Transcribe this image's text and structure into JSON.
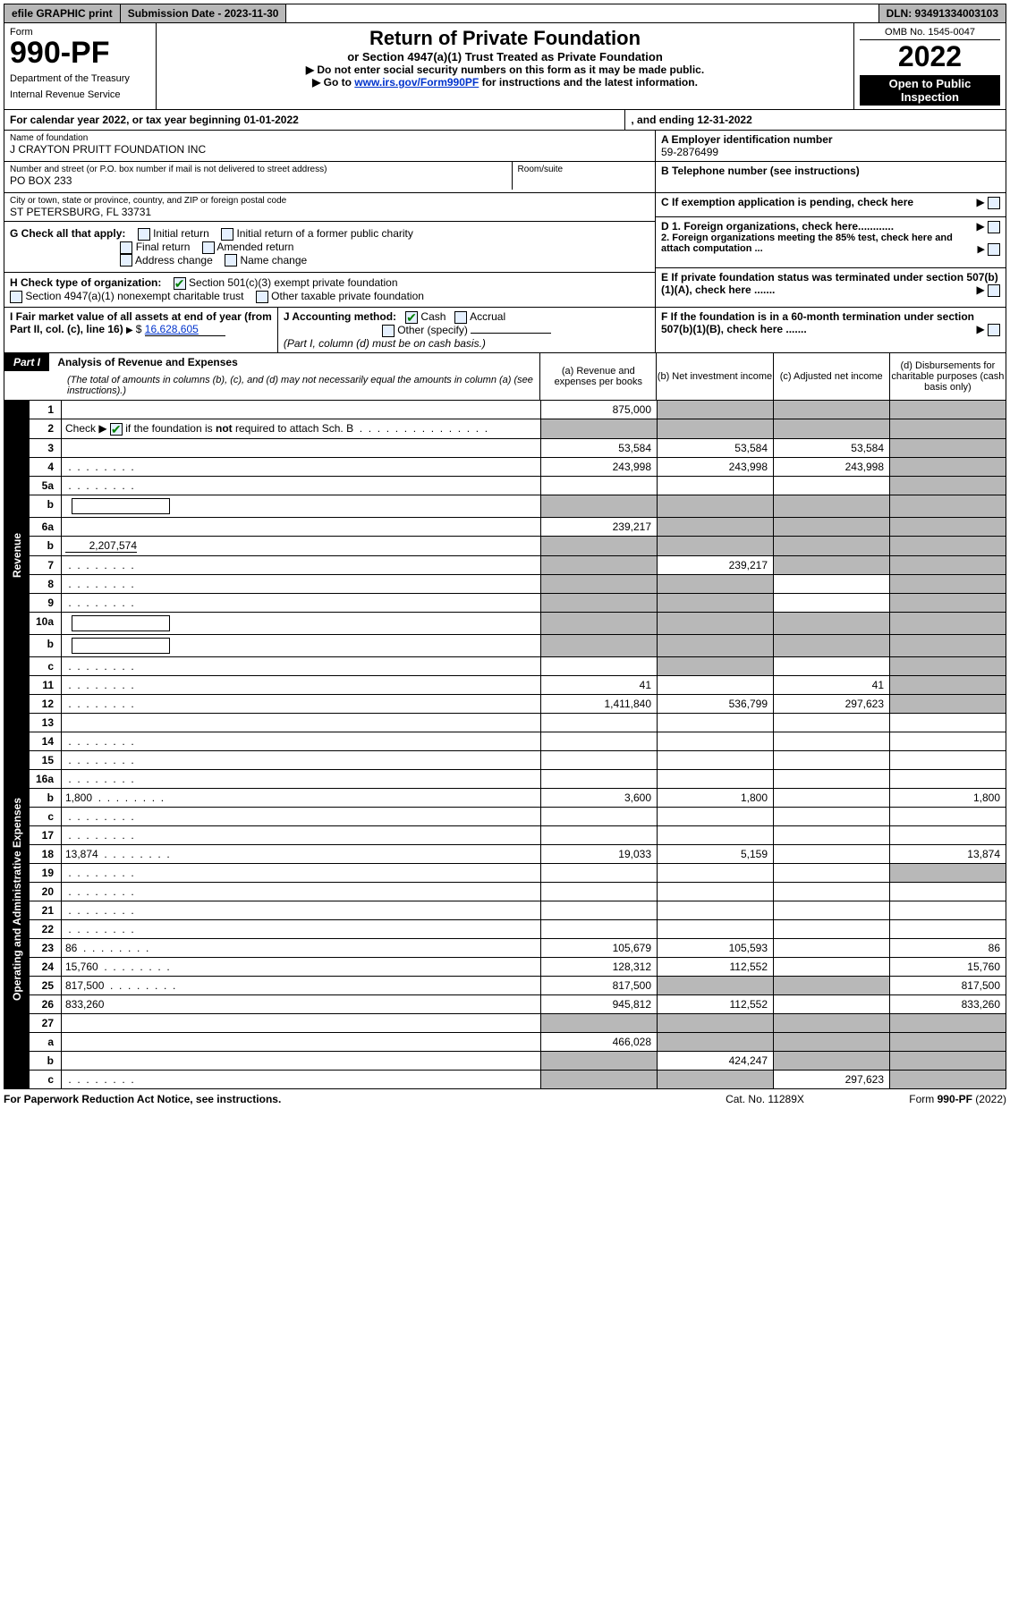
{
  "topbar": {
    "efile": "efile GRAPHIC print",
    "subdate_label": "Submission Date - 2023-11-30",
    "dln": "DLN: 93491334003103"
  },
  "header": {
    "form_label": "Form",
    "form_no": "990-PF",
    "dept": "Department of the Treasury",
    "irs": "Internal Revenue Service",
    "title": "Return of Private Foundation",
    "subtitle": "or Section 4947(a)(1) Trust Treated as Private Foundation",
    "note1": "▶ Do not enter social security numbers on this form as it may be made public.",
    "note2_prefix": "▶ Go to ",
    "note2_link": "www.irs.gov/Form990PF",
    "note2_suffix": " for instructions and the latest information.",
    "omb": "OMB No. 1545-0047",
    "year": "2022",
    "open": "Open to Public Inspection"
  },
  "cal": {
    "text_a": "For calendar year 2022, or tax year beginning 01-01-2022",
    "text_b": ", and ending 12-31-2022"
  },
  "id": {
    "name_label": "Name of foundation",
    "name": "J CRAYTON PRUITT FOUNDATION INC",
    "addr_label": "Number and street (or P.O. box number if mail is not delivered to street address)",
    "addr": "PO BOX 233",
    "room_label": "Room/suite",
    "city_label": "City or town, state or province, country, and ZIP or foreign postal code",
    "city": "ST PETERSBURG, FL  33731",
    "a_label": "A Employer identification number",
    "a_val": "59-2876499",
    "b_label": "B Telephone number (see instructions)",
    "c_label": "C If exemption application is pending, check here",
    "d1_label": "D 1. Foreign organizations, check here............",
    "d2_label": "2. Foreign organizations meeting the 85% test, check here and attach computation ...",
    "e_label": "E  If private foundation status was terminated under section 507(b)(1)(A), check here .......",
    "f_label": "F  If the foundation is in a 60-month termination under section 507(b)(1)(B), check here .......",
    "g_label": "G Check all that apply:",
    "g_opts": [
      "Initial return",
      "Initial return of a former public charity",
      "Final return",
      "Amended return",
      "Address change",
      "Name change"
    ],
    "h_label": "H Check type of organization:",
    "h_opt1": "Section 501(c)(3) exempt private foundation",
    "h_opt2": "Section 4947(a)(1) nonexempt charitable trust",
    "h_opt3": "Other taxable private foundation",
    "i_label": "I Fair market value of all assets at end of year (from Part II, col. (c), line 16)",
    "i_val": "16,628,605",
    "j_label": "J Accounting method:",
    "j_cash": "Cash",
    "j_accrual": "Accrual",
    "j_other": "Other (specify)",
    "j_note": "(Part I, column (d) must be on cash basis.)"
  },
  "part1": {
    "label": "Part I",
    "title": "Analysis of Revenue and Expenses",
    "title_note": "(The total of amounts in columns (b), (c), and (d) may not necessarily equal the amounts in column (a) (see instructions).)",
    "col_a": "(a)   Revenue and expenses per books",
    "col_b": "(b)   Net investment income",
    "col_c": "(c)   Adjusted net income",
    "col_d": "(d)   Disbursements for charitable purposes (cash basis only)",
    "side_rev": "Revenue",
    "side_exp": "Operating and Administrative Expenses"
  },
  "rows": [
    {
      "n": "1",
      "d": "",
      "a": "875,000",
      "b": "",
      "c": "",
      "sb": true,
      "sc": true,
      "sd": true
    },
    {
      "n": "2",
      "d": "",
      "dots": true,
      "a": "",
      "b": "",
      "c": "",
      "sa": true,
      "sb": true,
      "sc": true,
      "sd": true,
      "check": true
    },
    {
      "n": "3",
      "d": "",
      "a": "53,584",
      "b": "53,584",
      "c": "53,584",
      "sd": true
    },
    {
      "n": "4",
      "d": "",
      "dots": true,
      "a": "243,998",
      "b": "243,998",
      "c": "243,998",
      "sd": true
    },
    {
      "n": "5a",
      "d": "",
      "dots": true,
      "a": "",
      "b": "",
      "c": "",
      "sd": true
    },
    {
      "n": "b",
      "d": "",
      "inp": true,
      "a": "",
      "b": "",
      "c": "",
      "sa": true,
      "sb": true,
      "sc": true,
      "sd": true
    },
    {
      "n": "6a",
      "d": "",
      "a": "239,217",
      "b": "",
      "c": "",
      "sb": true,
      "sc": true,
      "sd": true
    },
    {
      "n": "b",
      "d": "",
      "subval": "2,207,574",
      "a": "",
      "b": "",
      "c": "",
      "sa": true,
      "sb": true,
      "sc": true,
      "sd": true
    },
    {
      "n": "7",
      "d": "",
      "dots": true,
      "a": "",
      "b": "239,217",
      "c": "",
      "sa": true,
      "sc": true,
      "sd": true
    },
    {
      "n": "8",
      "d": "",
      "dots": true,
      "a": "",
      "b": "",
      "c": "",
      "sa": true,
      "sb": true,
      "sd": true
    },
    {
      "n": "9",
      "d": "",
      "dots": true,
      "a": "",
      "b": "",
      "c": "",
      "sa": true,
      "sb": true,
      "sd": true
    },
    {
      "n": "10a",
      "d": "",
      "inp": true,
      "a": "",
      "b": "",
      "c": "",
      "sa": true,
      "sb": true,
      "sc": true,
      "sd": true
    },
    {
      "n": "b",
      "d": "",
      "dots": true,
      "inp": true,
      "a": "",
      "b": "",
      "c": "",
      "sa": true,
      "sb": true,
      "sc": true,
      "sd": true
    },
    {
      "n": "c",
      "d": "",
      "dots": true,
      "a": "",
      "b": "",
      "c": "",
      "sb": true,
      "sd": true
    },
    {
      "n": "11",
      "d": "",
      "dots": true,
      "a": "41",
      "b": "",
      "c": "41",
      "sd": true
    },
    {
      "n": "12",
      "d": "",
      "dots": true,
      "a": "1,411,840",
      "b": "536,799",
      "c": "297,623",
      "sd": true,
      "bold": true
    }
  ],
  "exprows": [
    {
      "n": "13",
      "d": "",
      "a": "",
      "b": "",
      "c": ""
    },
    {
      "n": "14",
      "d": "",
      "dots": true,
      "a": "",
      "b": "",
      "c": ""
    },
    {
      "n": "15",
      "d": "",
      "dots": true,
      "a": "",
      "b": "",
      "c": ""
    },
    {
      "n": "16a",
      "d": "",
      "dots": true,
      "a": "",
      "b": "",
      "c": ""
    },
    {
      "n": "b",
      "d": "1,800",
      "dots": true,
      "a": "3,600",
      "b": "1,800",
      "c": ""
    },
    {
      "n": "c",
      "d": "",
      "dots": true,
      "a": "",
      "b": "",
      "c": ""
    },
    {
      "n": "17",
      "d": "",
      "dots": true,
      "a": "",
      "b": "",
      "c": ""
    },
    {
      "n": "18",
      "d": "13,874",
      "dots": true,
      "a": "19,033",
      "b": "5,159",
      "c": ""
    },
    {
      "n": "19",
      "d": "",
      "dots": true,
      "a": "",
      "b": "",
      "c": "",
      "sd": true
    },
    {
      "n": "20",
      "d": "",
      "dots": true,
      "a": "",
      "b": "",
      "c": ""
    },
    {
      "n": "21",
      "d": "",
      "dots": true,
      "a": "",
      "b": "",
      "c": ""
    },
    {
      "n": "22",
      "d": "",
      "dots": true,
      "a": "",
      "b": "",
      "c": ""
    },
    {
      "n": "23",
      "d": "86",
      "dots": true,
      "a": "105,679",
      "b": "105,593",
      "c": ""
    },
    {
      "n": "24",
      "d": "15,760",
      "dots": true,
      "a": "128,312",
      "b": "112,552",
      "c": ""
    },
    {
      "n": "25",
      "d": "817,500",
      "dots": true,
      "a": "817,500",
      "b": "",
      "c": "",
      "sb": true,
      "sc": true
    },
    {
      "n": "26",
      "d": "833,260",
      "a": "945,812",
      "b": "112,552",
      "c": ""
    },
    {
      "n": "27",
      "d": "",
      "a": "",
      "b": "",
      "c": "",
      "sa": true,
      "sb": true,
      "sc": true,
      "sd": true
    },
    {
      "n": "a",
      "d": "",
      "a": "466,028",
      "b": "",
      "c": "",
      "sb": true,
      "sc": true,
      "sd": true
    },
    {
      "n": "b",
      "d": "",
      "a": "",
      "b": "424,247",
      "c": "",
      "sa": true,
      "sc": true,
      "sd": true
    },
    {
      "n": "c",
      "d": "",
      "dots": true,
      "a": "",
      "b": "",
      "c": "297,623",
      "sa": true,
      "sb": true,
      "sd": true
    }
  ],
  "footer": {
    "left": "For Paperwork Reduction Act Notice, see instructions.",
    "center": "Cat. No. 11289X",
    "right": "Form 990-PF (2022)"
  }
}
